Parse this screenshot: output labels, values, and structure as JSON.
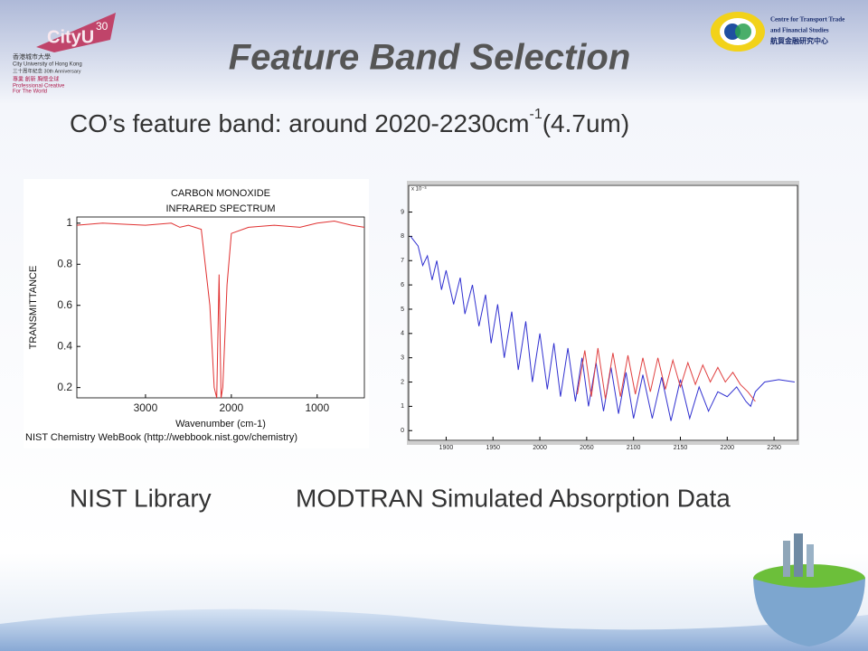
{
  "header": {
    "title": "Feature Band Selection",
    "logo_left": {
      "name": "CityU",
      "anniversary": "30",
      "lines": [
        "香港城市大學",
        "City University of Hong Kong",
        "三十周年紀念 30th Anniversary",
        "專業 創新 胸懷全球",
        "Professional·Creative",
        "For The World"
      ]
    },
    "logo_right": {
      "lines": [
        "Centre for Transport Trade",
        "and Financial Studies",
        "航貿金融研究中心"
      ]
    }
  },
  "subtitle": {
    "text": "CO’s feature band: around 2020-2230cm",
    "sup": "-1",
    "tail": "(4.7um)"
  },
  "charts": [
    {
      "type": "line",
      "title": [
        "CARBON MONOXIDE",
        "INFRARED SPECTRUM"
      ],
      "y_label": "TRANSMITTANCE",
      "x_label": "Wavenumber (cm-1)",
      "source": "NIST Chemistry WebBook (http://webbook.nist.gov/chemistry)",
      "xlim": [
        3800,
        450
      ],
      "ylim": [
        0.15,
        1.03
      ],
      "xticks": [
        3000,
        2000,
        1000
      ],
      "yticks": [
        0.2,
        0.4,
        0.6,
        0.8,
        1
      ],
      "series": [
        {
          "color": "#e03030",
          "x": [
            3800,
            3500,
            3000,
            2700,
            2600,
            2500,
            2350,
            2250,
            2200,
            2170,
            2143,
            2120,
            2100,
            2050,
            2000,
            1800,
            1500,
            1200,
            1000,
            800,
            600,
            450
          ],
          "values": [
            0.99,
            1.0,
            0.99,
            1.0,
            0.98,
            0.99,
            0.97,
            0.6,
            0.2,
            0.15,
            0.75,
            0.15,
            0.2,
            0.7,
            0.95,
            0.98,
            0.99,
            0.98,
            1.0,
            1.01,
            0.99,
            0.98
          ]
        }
      ]
    },
    {
      "type": "line",
      "y_offset_label": "x 10⁻³",
      "xlim": [
        1860,
        2275
      ],
      "ylim": [
        -0.4,
        10.1
      ],
      "xticks": [
        1900,
        1950,
        2000,
        2050,
        2100,
        2150,
        2200,
        2250
      ],
      "yticks": [
        0,
        1,
        2,
        3,
        4,
        5,
        6,
        7,
        8,
        9
      ],
      "series": [
        {
          "color": "#3030d0",
          "x": [
            1862,
            1870,
            1875,
            1880,
            1885,
            1890,
            1895,
            1900,
            1908,
            1915,
            1920,
            1928,
            1935,
            1942,
            1948,
            1955,
            1962,
            1970,
            1977,
            1985,
            1992,
            2000,
            2008,
            2015,
            2022,
            2030,
            2038,
            2045,
            2052,
            2060,
            2068,
            2076,
            2084,
            2092,
            2100,
            2110,
            2120,
            2130,
            2140,
            2150,
            2160,
            2170,
            2180,
            2190,
            2200,
            2210,
            2220,
            2225,
            2230,
            2240,
            2255,
            2272
          ],
          "values": [
            8.0,
            7.6,
            6.8,
            7.2,
            6.2,
            7.0,
            5.8,
            6.6,
            5.2,
            6.3,
            4.8,
            6.0,
            4.3,
            5.6,
            3.6,
            5.2,
            3.0,
            4.9,
            2.5,
            4.5,
            2.0,
            4.0,
            1.7,
            3.6,
            1.4,
            3.4,
            1.2,
            3.0,
            1.0,
            2.8,
            0.8,
            2.6,
            0.7,
            2.4,
            0.5,
            2.3,
            0.5,
            2.2,
            0.4,
            2.1,
            0.5,
            1.8,
            0.8,
            1.6,
            1.4,
            1.8,
            1.2,
            1.0,
            1.6,
            2.0,
            2.1,
            2.0
          ]
        },
        {
          "color": "#e04040",
          "x": [
            2040,
            2048,
            2055,
            2062,
            2070,
            2078,
            2086,
            2094,
            2102,
            2110,
            2118,
            2126,
            2134,
            2142,
            2150,
            2158,
            2166,
            2174,
            2182,
            2190,
            2198,
            2206,
            2214,
            2222,
            2230
          ],
          "values": [
            1.5,
            3.3,
            1.4,
            3.4,
            1.3,
            3.2,
            1.4,
            3.1,
            1.5,
            3.0,
            1.6,
            3.0,
            1.7,
            2.9,
            1.8,
            2.8,
            1.9,
            2.7,
            2.0,
            2.6,
            2.0,
            2.4,
            1.9,
            1.6,
            1.2
          ]
        }
      ]
    }
  ],
  "captions": [
    "NIST Library",
    "MODTRAN Simulated Absorption Data"
  ]
}
